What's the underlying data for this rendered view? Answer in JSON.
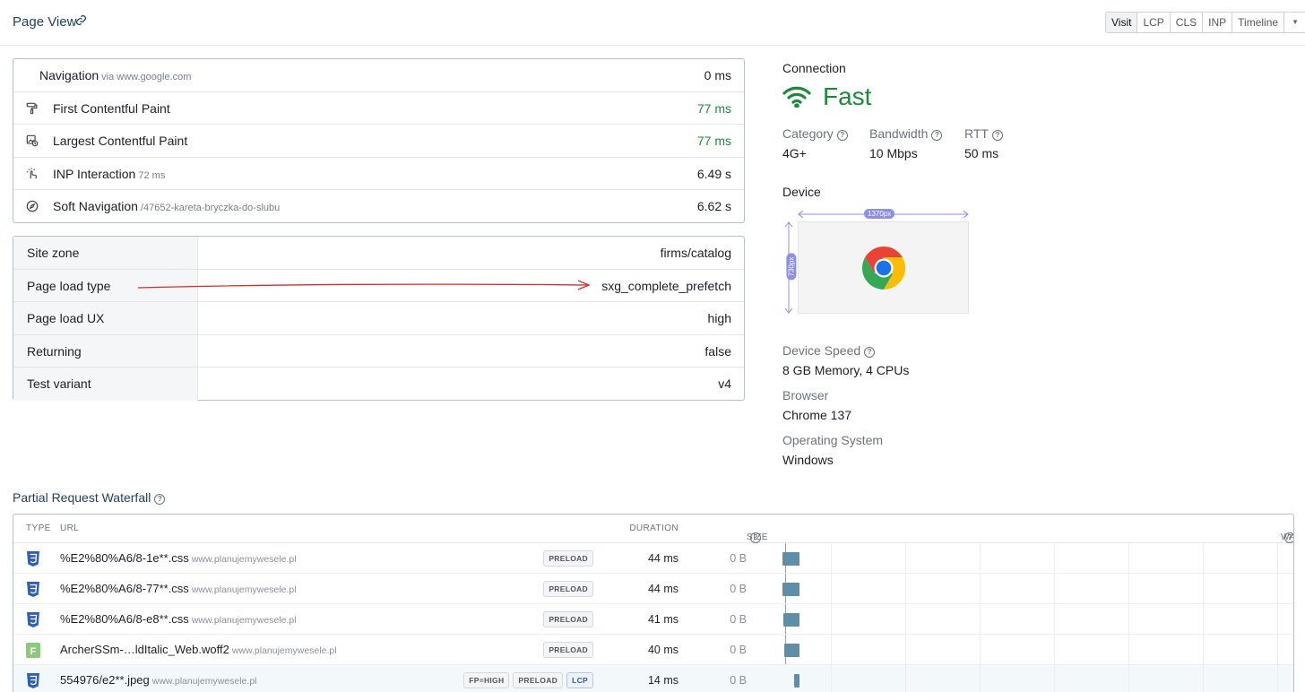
{
  "header": {
    "title": "Page View",
    "tabs": [
      "Visit",
      "LCP",
      "CLS",
      "INP",
      "Timeline"
    ],
    "active_tab": "Visit",
    "dropdown_glyph": "▼"
  },
  "metrics": [
    {
      "label": "Navigation",
      "sub": "via www.google.com",
      "value": "0 ms",
      "icon": "navigation-icon",
      "color": "default"
    },
    {
      "label": "First Contentful Paint",
      "sub": "",
      "value": "77 ms",
      "icon": "paint-roller-icon",
      "color": "green"
    },
    {
      "label": "Largest Contentful Paint",
      "sub": "",
      "value": "77 ms",
      "icon": "lcp-image-icon",
      "color": "green"
    },
    {
      "label": "INP Interaction",
      "sub": "72 ms",
      "value": "6.49 s",
      "icon": "pointer-click-icon",
      "color": "default"
    },
    {
      "label": "Soft Navigation",
      "sub": "/47652-kareta-bryczka-do-slubu",
      "value": "6.62 s",
      "icon": "compass-icon",
      "color": "default"
    }
  ],
  "attributes": [
    {
      "key": "Site zone",
      "value": "firms/catalog"
    },
    {
      "key": "Page load type",
      "value": "sxg_complete_prefetch"
    },
    {
      "key": "Page load UX",
      "value": "high"
    },
    {
      "key": "Returning",
      "value": "false"
    },
    {
      "key": "Test variant",
      "value": "v4"
    }
  ],
  "connection": {
    "title": "Connection",
    "speed_label": "Fast",
    "category_label": "Category",
    "category_value": "4G+",
    "bandwidth_label": "Bandwidth",
    "bandwidth_value": "10 Mbps",
    "rtt_label": "RTT",
    "rtt_value": "50 ms",
    "speed_color": "#1e8a3a"
  },
  "device": {
    "title": "Device",
    "width_label": "1370px",
    "height_label": "730px",
    "device_speed_label": "Device Speed",
    "device_speed_value": "8 GB Memory, 4 CPUs",
    "browser_label": "Browser",
    "browser_value": "Chrome 137",
    "os_label": "Operating System",
    "os_value": "Windows",
    "browser_icon": "chrome-logo-icon"
  },
  "waterfall": {
    "title": "Partial Request Waterfall",
    "columns": {
      "type": "TYPE",
      "url": "URL",
      "duration": "DURATION",
      "size": "SIZE",
      "waterfall": "WATERFALL"
    },
    "rows": [
      {
        "type": "css",
        "type_glyph": "3",
        "url": "%E2%80%A6/8-1e**.css",
        "host": "www.planujemywesele.pl",
        "badges": [
          "PRELOAD"
        ],
        "duration": "44 ms",
        "size": "0 B",
        "start_ms": 0,
        "dur_ms": 44
      },
      {
        "type": "css",
        "type_glyph": "3",
        "url": "%E2%80%A6/8-77**.css",
        "host": "www.planujemywesele.pl",
        "badges": [
          "PRELOAD"
        ],
        "duration": "44 ms",
        "size": "0 B",
        "start_ms": 0,
        "dur_ms": 44
      },
      {
        "type": "css",
        "type_glyph": "3",
        "url": "%E2%80%A6/8-e8**.css",
        "host": "www.planujemywesele.pl",
        "badges": [
          "PRELOAD"
        ],
        "duration": "41 ms",
        "size": "0 B",
        "start_ms": 3,
        "dur_ms": 41
      },
      {
        "type": "font",
        "type_glyph": "F",
        "url": "ArcherSSm-…ldItalic_Web.woff2",
        "host": "www.planujemywesele.pl",
        "badges": [
          "PRELOAD"
        ],
        "duration": "40 ms",
        "size": "0 B",
        "start_ms": 4,
        "dur_ms": 40
      },
      {
        "type": "image",
        "type_glyph": "3",
        "url": "554976/e2**.jpeg",
        "host": "www.planujemywesele.pl",
        "badges": [
          "FP=HIGH",
          "PRELOAD",
          "LCP"
        ],
        "duration": "14 ms",
        "size": "0 B",
        "start_ms": 30,
        "dur_ms": 14,
        "highlight": true
      }
    ]
  }
}
